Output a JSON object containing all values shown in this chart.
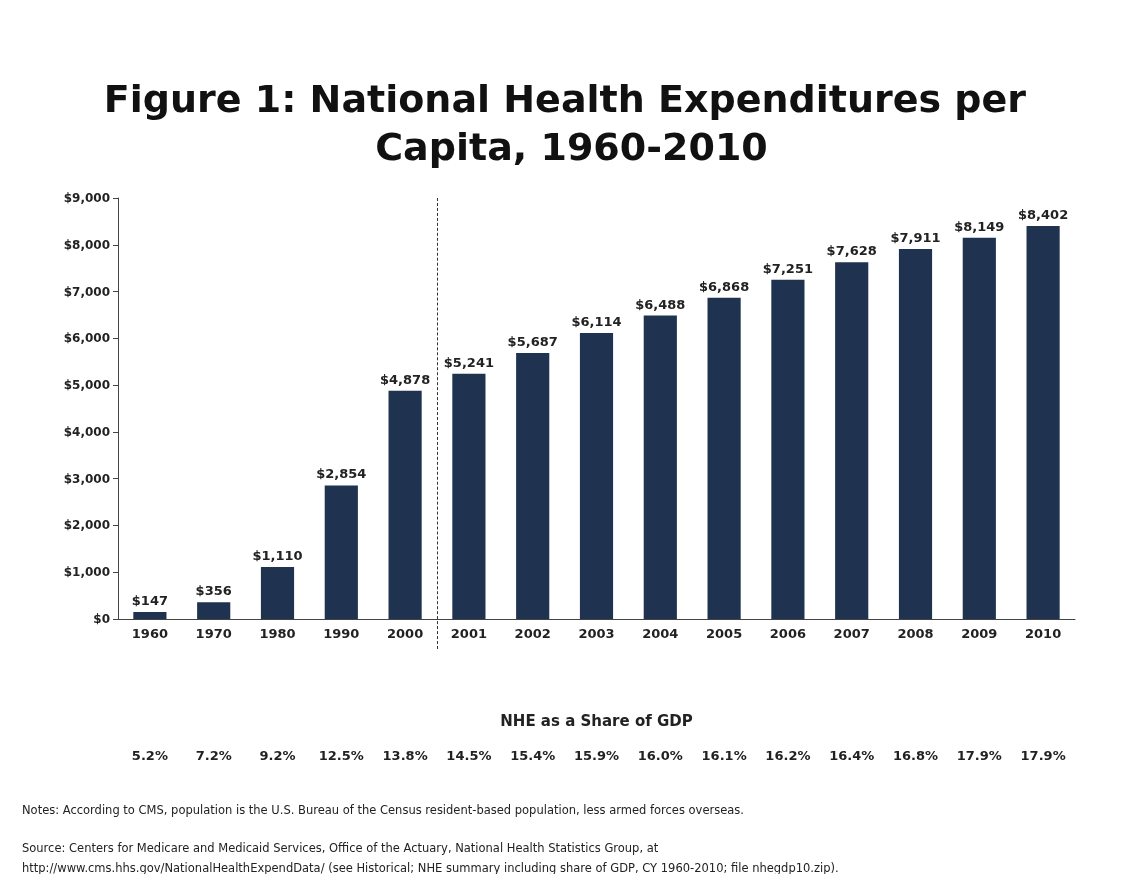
{
  "chart_data": {
    "type": "bar",
    "title": "Figure 1: National Health Expenditures per Capita, 1960-2010",
    "categories": [
      "1960",
      "1970",
      "1980",
      "1990",
      "2000",
      "2001",
      "2002",
      "2003",
      "2004",
      "2005",
      "2006",
      "2007",
      "2008",
      "2009",
      "2010"
    ],
    "values": [
      147,
      356,
      1110,
      2854,
      4878,
      5241,
      5687,
      6114,
      6488,
      6868,
      7251,
      7628,
      7911,
      8149,
      8402
    ],
    "value_labels": [
      "$147",
      "$356",
      "$1,110",
      "$2,854",
      "$4,878",
      "$5,241",
      "$5,687",
      "$6,114",
      "$6,488",
      "$6,868",
      "$7,251",
      "$7,628",
      "$7,911",
      "$8,149",
      "$8,402"
    ],
    "color": "#1f3350",
    "ylim": [
      0,
      9000
    ],
    "yticks": [
      {
        "value": 0,
        "label": "$0"
      },
      {
        "value": 1000,
        "label": "$1,000"
      },
      {
        "value": 2000,
        "label": "$2,000"
      },
      {
        "value": 3000,
        "label": "$3,000"
      },
      {
        "value": 4000,
        "label": "$4,000"
      },
      {
        "value": 5000,
        "label": "$5,000"
      },
      {
        "value": 6000,
        "label": "$6,000"
      },
      {
        "value": 7000,
        "label": "$7,000"
      },
      {
        "value": 8000,
        "label": "$8,000"
      },
      {
        "value": 9000,
        "label": "$9,000"
      }
    ],
    "grid": false,
    "annotations": [
      "NHE as a Share of GDP",
      "5.2%",
      "7.2%",
      "9.2%",
      "12.5%",
      "13.8%",
      "14.5%",
      "15.4%",
      "15.9%",
      "16.0%",
      "16.1%",
      "16.2%",
      "16.4%",
      "16.8%",
      "17.9%",
      "17.9%",
      "Notes: According to CMS, population is the U.S. Bureau of the Census resident-based population, less armed forces overseas.",
      "Source: Centers for Medicare and Medicaid Services, Office of the Actuary, National Health Statistics Group, at",
      "http://www.cms.hhs.gov/NationalHealthExpendData/ (see Historical; NHE summary including share of GDP, CY 1960-2010; file nhegdp10.zip)."
    ]
  }
}
